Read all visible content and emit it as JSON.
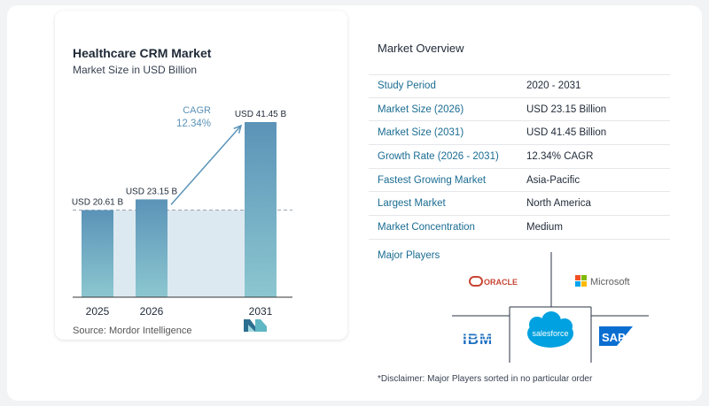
{
  "chart_data": {
    "type": "bar",
    "title": "Healthcare CRM Market",
    "subtitle": "Market Size in USD Billion",
    "categories": [
      "2025",
      "2026",
      "2031"
    ],
    "values": [
      20.61,
      23.15,
      41.45
    ],
    "data_labels": [
      "USD 20.61 B",
      "USD 23.15 B",
      "USD 41.45 B"
    ],
    "cagr_label": "CAGR",
    "cagr_value": "12.34%",
    "colors": {
      "bar_top": "#5b93b8",
      "bar_bottom": "#8cc7d0",
      "baseline_fill": "#dde9f1",
      "arrow": "#5b93b8",
      "cagr_text": "#5b93b8"
    }
  },
  "source": "Source:  Mordor Intelligence",
  "overview": {
    "title": "Market Overview",
    "rows": [
      {
        "label": "Study Period",
        "value": "2020 - 2031"
      },
      {
        "label": "Market Size (2026)",
        "value": "USD 23.15 Billion"
      },
      {
        "label": "Market Size (2031)",
        "value": "USD 41.45 Billion"
      },
      {
        "label": "Growth Rate (2026 - 2031)",
        "value": "12.34% CAGR"
      },
      {
        "label": "Fastest Growing Market",
        "value": "Asia-Pacific"
      },
      {
        "label": "Largest Market",
        "value": "North America"
      },
      {
        "label": "Market Concentration",
        "value": "Medium"
      }
    ]
  },
  "players": {
    "title": "Major Players",
    "logos": [
      "ORACLE",
      "Microsoft",
      "IBM",
      "salesforce",
      "SAP"
    ]
  },
  "disclaimer": "*Disclaimer: Major Players sorted in no particular order"
}
